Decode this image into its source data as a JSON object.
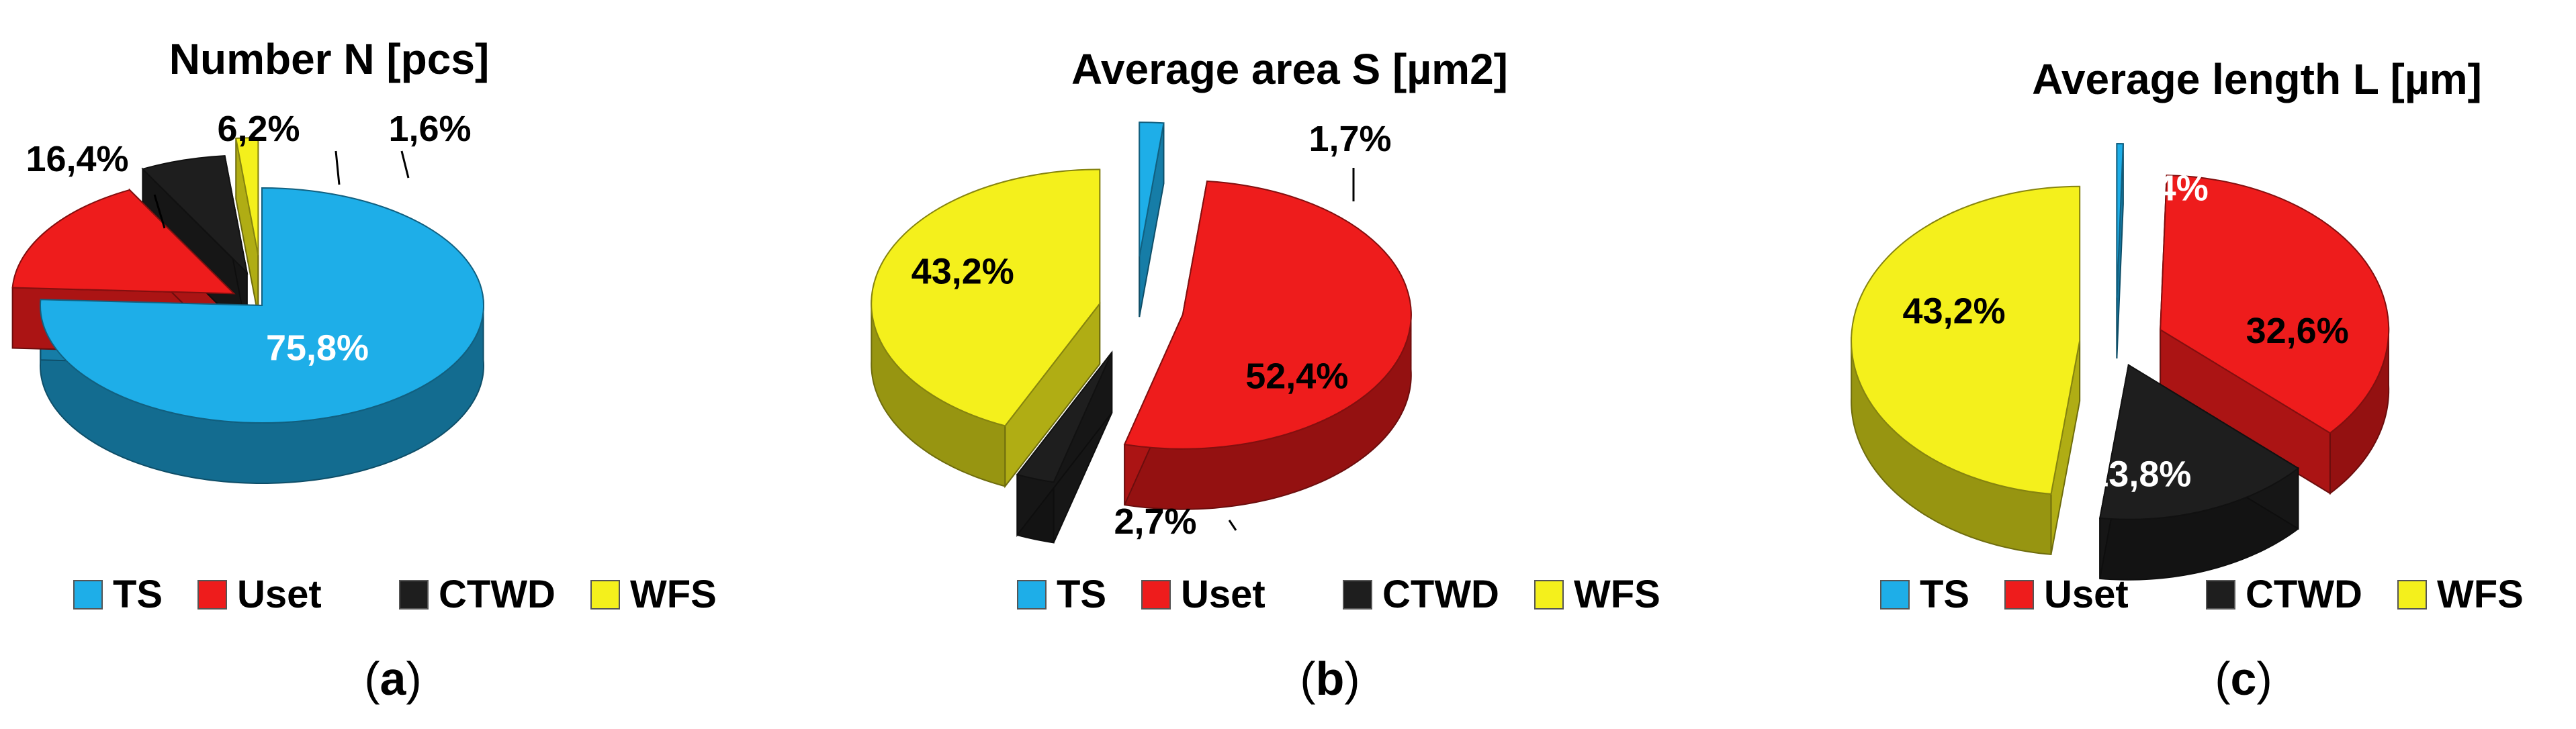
{
  "chart_data": [
    {
      "type": "pie",
      "panel_label": "a",
      "title": "Number N [pcs]",
      "categories": [
        "TS",
        "Uset",
        "CTWD",
        "WFS"
      ],
      "values": [
        75.8,
        16.4,
        6.2,
        1.6
      ],
      "value_labels": [
        "75,8%",
        "16,4%",
        "6,2%",
        "1,6%"
      ],
      "legend": [
        "TS",
        "Uset",
        "CTWD",
        "WFS"
      ],
      "legend_position": "bottom"
    },
    {
      "type": "pie",
      "panel_label": "b",
      "title": "Average area S [µm2]",
      "categories": [
        "TS",
        "Uset",
        "CTWD",
        "WFS"
      ],
      "values": [
        1.7,
        52.4,
        2.7,
        43.2
      ],
      "value_labels": [
        "1,7%",
        "52,4%",
        "2,7%",
        "43,2%"
      ],
      "legend": [
        "TS",
        "Uset",
        "CTWD",
        "WFS"
      ],
      "legend_position": "bottom"
    },
    {
      "type": "pie",
      "panel_label": "c",
      "title": "Average length L [µm]",
      "categories": [
        "TS",
        "Uset",
        "CTWD",
        "WFS"
      ],
      "values": [
        0.4,
        32.6,
        13.8,
        43.2
      ],
      "value_labels": [
        "0,4%",
        "32,6%",
        "13,8%",
        "43,2%"
      ],
      "legend": [
        "TS",
        "Uset",
        "CTWD",
        "WFS"
      ],
      "legend_position": "bottom"
    }
  ],
  "colors": {
    "TS": "#1EAEE8",
    "Uset": "#EE1C1C",
    "CTWD": "#1E1E1E",
    "WFS": "#F4F01C"
  }
}
